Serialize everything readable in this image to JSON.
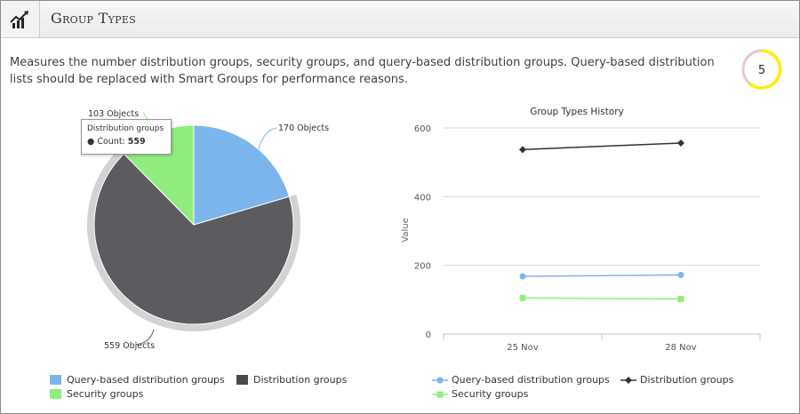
{
  "header": {
    "title": "Group Types",
    "icon": "trend-chart-icon"
  },
  "description": "Measures the number distribution groups, security groups, and query-based distribution groups. Query-based distribution lists should be replaced with Smart Groups for performance reasons.",
  "score": {
    "value": "5",
    "ring_color": "#ffee00"
  },
  "pie_chart": {
    "type": "pie",
    "series": [
      {
        "name": "Query-based distribution groups",
        "value": 170,
        "label": "170 Objects",
        "color": "#7cb5ec"
      },
      {
        "name": "Distribution groups",
        "value": 559,
        "label": "559 Objects",
        "color": "#5b5b60"
      },
      {
        "name": "Security groups",
        "value": 103,
        "label": "103 Objects",
        "color": "#90ed7d"
      }
    ],
    "tooltip": {
      "series": "Distribution groups",
      "count_label": "Count:",
      "count_value": "559"
    },
    "legend": [
      "Query-based distribution groups",
      "Distribution groups",
      "Security groups"
    ]
  },
  "chart_data": {
    "type": "line",
    "title": "Group Types History",
    "ylabel": "Value",
    "xlabel": "",
    "categories": [
      "25 Nov",
      "28 Nov"
    ],
    "ylim": [
      0,
      600
    ],
    "yticks": [
      "0",
      "200",
      "400",
      "600"
    ],
    "grid": true,
    "legend_position": "bottom",
    "series": [
      {
        "name": "Query-based distribution groups",
        "values": [
          168,
          172
        ],
        "color": "#7cb5ec",
        "marker": "circle"
      },
      {
        "name": "Distribution groups",
        "values": [
          537,
          556
        ],
        "color": "#333333",
        "marker": "diamond"
      },
      {
        "name": "Security groups",
        "values": [
          105,
          102
        ],
        "color": "#90ed7d",
        "marker": "square"
      }
    ]
  }
}
